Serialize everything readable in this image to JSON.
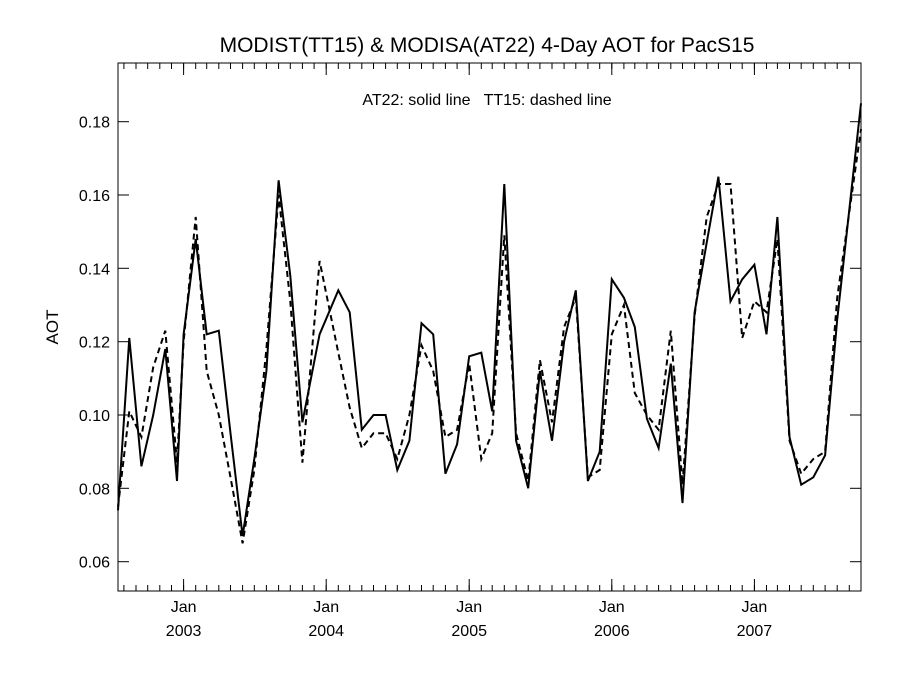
{
  "chart_data": {
    "type": "line",
    "title": "MODIST(TT15) & MODISA(AT22) 4-Day AOT for PacS15",
    "annotation": "AT22: solid line   TT15: dashed line",
    "xlabel": "",
    "ylabel": "AOT",
    "xlim": [
      "2002-07-17",
      "2007-10-01"
    ],
    "ylim": [
      0.052,
      0.196
    ],
    "yticks": [
      0.06,
      0.08,
      0.1,
      0.12,
      0.14,
      0.16,
      0.18
    ],
    "ytick_labels": [
      "0.06",
      "0.08",
      "0.10",
      "0.12",
      "0.14",
      "0.16",
      "0.18"
    ],
    "xticks": [
      {
        "date": "2003-01-01",
        "month": "Jan",
        "year": "2003"
      },
      {
        "date": "2004-01-01",
        "month": "Jan",
        "year": "2004"
      },
      {
        "date": "2005-01-01",
        "month": "Jan",
        "year": "2005"
      },
      {
        "date": "2006-01-01",
        "month": "Jan",
        "year": "2006"
      },
      {
        "date": "2007-01-01",
        "month": "Jan",
        "year": "2007"
      }
    ],
    "minor_xticks": "monthly",
    "series": [
      {
        "name": "AT22",
        "style": "solid",
        "color": "#000000",
        "points": [
          [
            "2002-07-17",
            0.074
          ],
          [
            "2002-08-15",
            0.121
          ],
          [
            "2002-09-15",
            0.086
          ],
          [
            "2002-10-15",
            0.1
          ],
          [
            "2002-11-15",
            0.118
          ],
          [
            "2002-12-15",
            0.082
          ],
          [
            "2003-01-01",
            0.122
          ],
          [
            "2003-02-01",
            0.148
          ],
          [
            "2003-03-01",
            0.122
          ],
          [
            "2003-04-01",
            0.123
          ],
          [
            "2003-05-01",
            0.095
          ],
          [
            "2003-06-01",
            0.067
          ],
          [
            "2003-07-01",
            0.088
          ],
          [
            "2003-08-01",
            0.112
          ],
          [
            "2003-09-01",
            0.164
          ],
          [
            "2003-10-01",
            0.138
          ],
          [
            "2003-11-01",
            0.098
          ],
          [
            "2003-12-15",
            0.122
          ],
          [
            "2004-02-01",
            0.134
          ],
          [
            "2004-03-01",
            0.128
          ],
          [
            "2004-04-01",
            0.096
          ],
          [
            "2004-05-01",
            0.1
          ],
          [
            "2004-06-01",
            0.1
          ],
          [
            "2004-07-01",
            0.085
          ],
          [
            "2004-08-01",
            0.093
          ],
          [
            "2004-09-01",
            0.125
          ],
          [
            "2004-10-01",
            0.122
          ],
          [
            "2004-11-01",
            0.084
          ],
          [
            "2004-12-01",
            0.092
          ],
          [
            "2005-01-01",
            0.116
          ],
          [
            "2005-02-01",
            0.117
          ],
          [
            "2005-03-01",
            0.101
          ],
          [
            "2005-04-01",
            0.163
          ],
          [
            "2005-05-01",
            0.093
          ],
          [
            "2005-06-01",
            0.08
          ],
          [
            "2005-07-01",
            0.112
          ],
          [
            "2005-08-01",
            0.093
          ],
          [
            "2005-09-01",
            0.12
          ],
          [
            "2005-10-01",
            0.134
          ],
          [
            "2005-11-01",
            0.082
          ],
          [
            "2005-12-01",
            0.09
          ],
          [
            "2006-01-01",
            0.137
          ],
          [
            "2006-02-01",
            0.132
          ],
          [
            "2006-03-01",
            0.124
          ],
          [
            "2006-04-01",
            0.099
          ],
          [
            "2006-05-01",
            0.091
          ],
          [
            "2006-06-01",
            0.114
          ],
          [
            "2006-07-01",
            0.076
          ],
          [
            "2006-08-01",
            0.128
          ],
          [
            "2006-09-01",
            0.147
          ],
          [
            "2006-10-01",
            0.165
          ],
          [
            "2006-11-01",
            0.131
          ],
          [
            "2006-12-01",
            0.137
          ],
          [
            "2007-01-01",
            0.141
          ],
          [
            "2007-02-01",
            0.122
          ],
          [
            "2007-03-01",
            0.154
          ],
          [
            "2007-04-01",
            0.094
          ],
          [
            "2007-05-01",
            0.081
          ],
          [
            "2007-06-01",
            0.083
          ],
          [
            "2007-07-01",
            0.089
          ],
          [
            "2007-08-01",
            0.126
          ],
          [
            "2007-10-01",
            0.185
          ]
        ]
      },
      {
        "name": "TT15",
        "style": "dashed",
        "color": "#000000",
        "points": [
          [
            "2002-07-17",
            0.075
          ],
          [
            "2002-08-15",
            0.101
          ],
          [
            "2002-09-15",
            0.094
          ],
          [
            "2002-10-15",
            0.113
          ],
          [
            "2002-11-15",
            0.123
          ],
          [
            "2002-12-15",
            0.087
          ],
          [
            "2003-01-01",
            0.12
          ],
          [
            "2003-02-01",
            0.154
          ],
          [
            "2003-03-01",
            0.112
          ],
          [
            "2003-04-01",
            0.1
          ],
          [
            "2003-05-01",
            0.083
          ],
          [
            "2003-06-01",
            0.065
          ],
          [
            "2003-07-01",
            0.085
          ],
          [
            "2003-08-01",
            0.118
          ],
          [
            "2003-09-01",
            0.16
          ],
          [
            "2003-10-01",
            0.131
          ],
          [
            "2003-11-01",
            0.087
          ],
          [
            "2003-12-15",
            0.142
          ],
          [
            "2004-02-01",
            0.117
          ],
          [
            "2004-03-01",
            0.102
          ],
          [
            "2004-04-01",
            0.091
          ],
          [
            "2004-05-01",
            0.095
          ],
          [
            "2004-06-01",
            0.095
          ],
          [
            "2004-07-01",
            0.088
          ],
          [
            "2004-08-01",
            0.1
          ],
          [
            "2004-09-01",
            0.119
          ],
          [
            "2004-10-01",
            0.112
          ],
          [
            "2004-11-01",
            0.094
          ],
          [
            "2004-12-01",
            0.096
          ],
          [
            "2005-01-01",
            0.114
          ],
          [
            "2005-02-01",
            0.088
          ],
          [
            "2005-03-01",
            0.095
          ],
          [
            "2005-04-01",
            0.149
          ],
          [
            "2005-05-01",
            0.095
          ],
          [
            "2005-06-01",
            0.082
          ],
          [
            "2005-07-01",
            0.115
          ],
          [
            "2005-08-01",
            0.098
          ],
          [
            "2005-09-01",
            0.124
          ],
          [
            "2005-10-01",
            0.132
          ],
          [
            "2005-11-01",
            0.083
          ],
          [
            "2005-12-01",
            0.085
          ],
          [
            "2006-01-01",
            0.122
          ],
          [
            "2006-02-01",
            0.13
          ],
          [
            "2006-03-01",
            0.106
          ],
          [
            "2006-04-01",
            0.1
          ],
          [
            "2006-05-01",
            0.096
          ],
          [
            "2006-06-01",
            0.123
          ],
          [
            "2006-07-01",
            0.081
          ],
          [
            "2006-08-01",
            0.127
          ],
          [
            "2006-09-01",
            0.154
          ],
          [
            "2006-10-01",
            0.163
          ],
          [
            "2006-11-01",
            0.163
          ],
          [
            "2006-12-01",
            0.121
          ],
          [
            "2007-01-01",
            0.131
          ],
          [
            "2007-02-01",
            0.128
          ],
          [
            "2007-03-01",
            0.148
          ],
          [
            "2007-04-01",
            0.093
          ],
          [
            "2007-05-01",
            0.084
          ],
          [
            "2007-06-01",
            0.088
          ],
          [
            "2007-07-01",
            0.09
          ],
          [
            "2007-08-01",
            0.132
          ],
          [
            "2007-10-01",
            0.178
          ]
        ]
      }
    ]
  }
}
